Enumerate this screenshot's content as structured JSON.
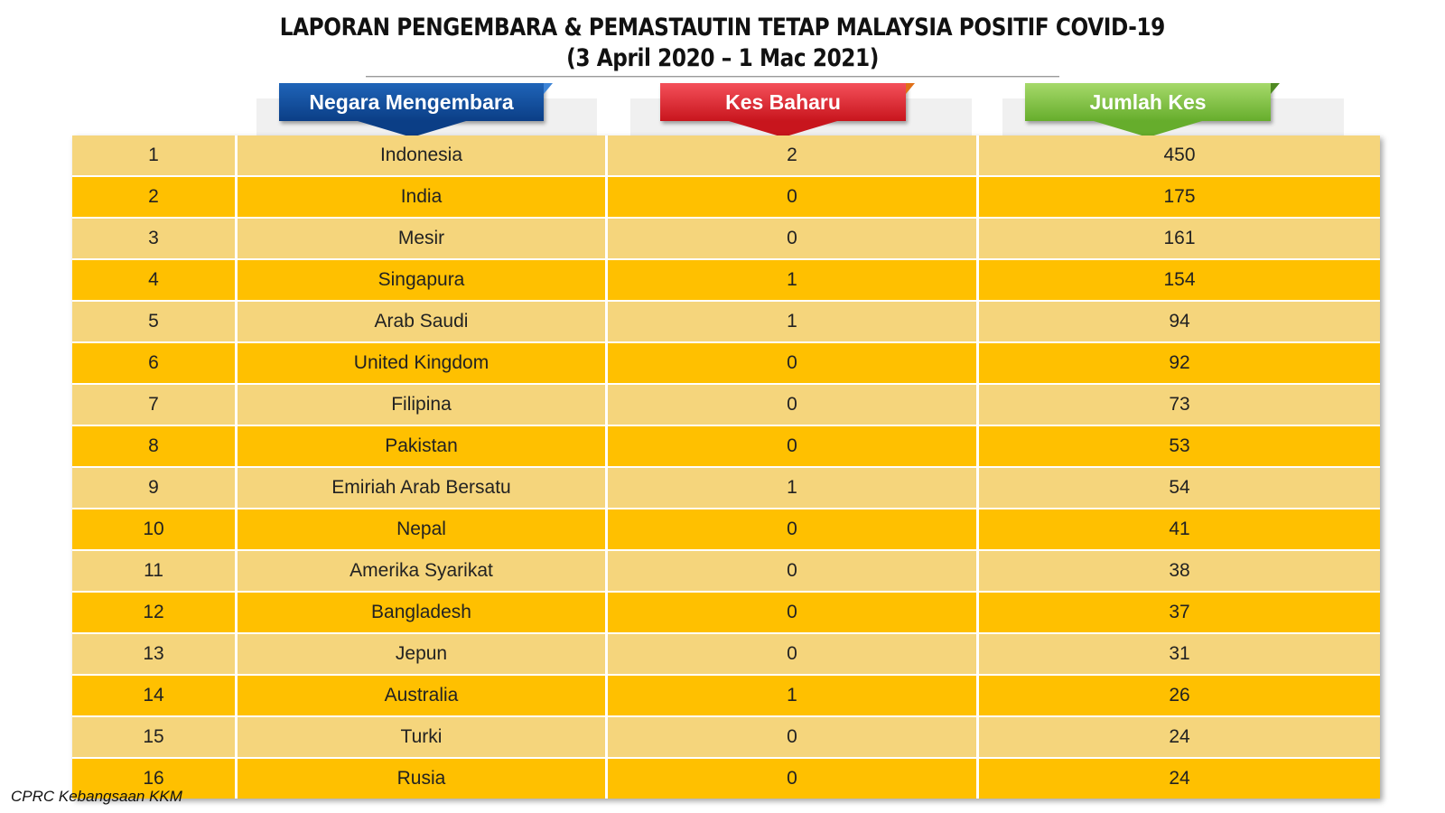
{
  "title": {
    "line1": "LAPORAN PENGEMBARA & PEMASTAUTIN TETAP MALAYSIA POSITIF COVID-19",
    "line2": "(3 April 2020 – 1 Mac 2021)"
  },
  "headers": {
    "country": "Negara Mengembara",
    "new_cases": "Kes Baharu",
    "total_cases": "Jumlah Kes"
  },
  "colors": {
    "row_light": "#f5d57c",
    "row_dark": "#ffc000",
    "header_blue": "#1f64b8",
    "header_red": "#e8323b",
    "header_green": "#86c349"
  },
  "rows": [
    {
      "no": "1",
      "country": "Indonesia",
      "new": "2",
      "total": "450"
    },
    {
      "no": "2",
      "country": "India",
      "new": "0",
      "total": "175"
    },
    {
      "no": "3",
      "country": "Mesir",
      "new": "0",
      "total": "161"
    },
    {
      "no": "4",
      "country": "Singapura",
      "new": "1",
      "total": "154"
    },
    {
      "no": "5",
      "country": "Arab Saudi",
      "new": "1",
      "total": "94"
    },
    {
      "no": "6",
      "country": "United Kingdom",
      "new": "0",
      "total": "92"
    },
    {
      "no": "7",
      "country": "Filipina",
      "new": "0",
      "total": "73"
    },
    {
      "no": "8",
      "country": "Pakistan",
      "new": "0",
      "total": "53"
    },
    {
      "no": "9",
      "country": "Emiriah Arab Bersatu",
      "new": "1",
      "total": "54"
    },
    {
      "no": "10",
      "country": "Nepal",
      "new": "0",
      "total": "41"
    },
    {
      "no": "11",
      "country": "Amerika Syarikat",
      "new": "0",
      "total": "38"
    },
    {
      "no": "12",
      "country": "Bangladesh",
      "new": "0",
      "total": "37"
    },
    {
      "no": "13",
      "country": "Jepun",
      "new": "0",
      "total": "31"
    },
    {
      "no": "14",
      "country": "Australia",
      "new": "1",
      "total": "26"
    },
    {
      "no": "15",
      "country": "Turki",
      "new": "0",
      "total": "24"
    },
    {
      "no": "16",
      "country": "Rusia",
      "new": "0",
      "total": "24"
    }
  ],
  "footer": "CPRC Kebangsaan KKM"
}
